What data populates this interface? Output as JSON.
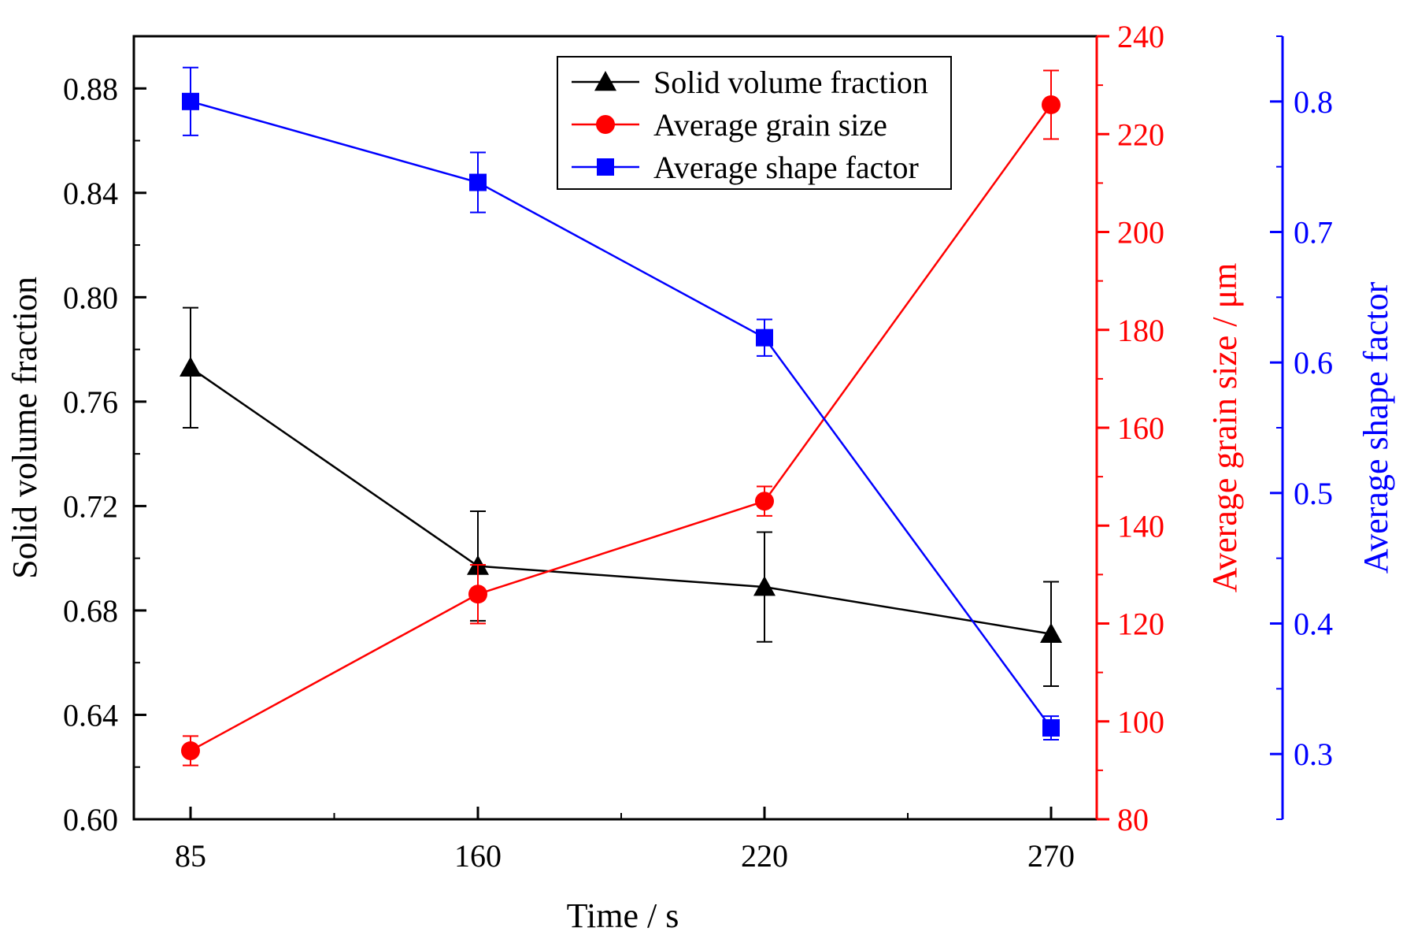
{
  "chart_data": {
    "type": "line",
    "xlabel": "Time / s",
    "categories": [
      "85",
      "160",
      "220",
      "270"
    ],
    "axes": {
      "left": {
        "label": "Solid volume fraction",
        "range": [
          0.6,
          0.9
        ],
        "ticks": [
          "0.60",
          "0.64",
          "0.68",
          "0.72",
          "0.76",
          "0.80",
          "0.84",
          "0.88"
        ],
        "tick_values": [
          0.6,
          0.64,
          0.68,
          0.72,
          0.76,
          0.8,
          0.84,
          0.88
        ],
        "minor_step": 0.02,
        "color": "#000000"
      },
      "right1": {
        "label": "Average grain size / μm",
        "range": [
          80,
          240
        ],
        "ticks": [
          "80",
          "100",
          "120",
          "140",
          "160",
          "180",
          "200",
          "220",
          "240"
        ],
        "tick_values": [
          80,
          100,
          120,
          140,
          160,
          180,
          200,
          220,
          240
        ],
        "minor_step": 10,
        "color": "#ff0000"
      },
      "right2": {
        "label": "Average shape factor",
        "range": [
          0.25,
          0.85
        ],
        "ticks": [
          "0.3",
          "0.4",
          "0.5",
          "0.6",
          "0.7",
          "0.8"
        ],
        "tick_values": [
          0.3,
          0.4,
          0.5,
          0.6,
          0.7,
          0.8
        ],
        "minor_step": 0.05,
        "color": "#0000ff"
      }
    },
    "series": [
      {
        "name": "Solid volume fraction",
        "axis": "left",
        "marker": "triangle",
        "color": "#000000",
        "values": [
          0.773,
          0.697,
          0.689,
          0.671
        ],
        "errors": [
          0.023,
          0.021,
          0.021,
          0.02
        ]
      },
      {
        "name": "Average grain size",
        "axis": "right1",
        "marker": "circle",
        "color": "#ff0000",
        "values": [
          94,
          126,
          145,
          226
        ],
        "errors": [
          3,
          6,
          3,
          7
        ]
      },
      {
        "name": "Average shape factor",
        "axis": "right2",
        "marker": "square",
        "color": "#0000ff",
        "values": [
          0.8,
          0.738,
          0.619,
          0.32
        ],
        "errors": [
          0.026,
          0.023,
          0.014,
          0.009
        ]
      }
    ],
    "legend_position": "top-right"
  }
}
